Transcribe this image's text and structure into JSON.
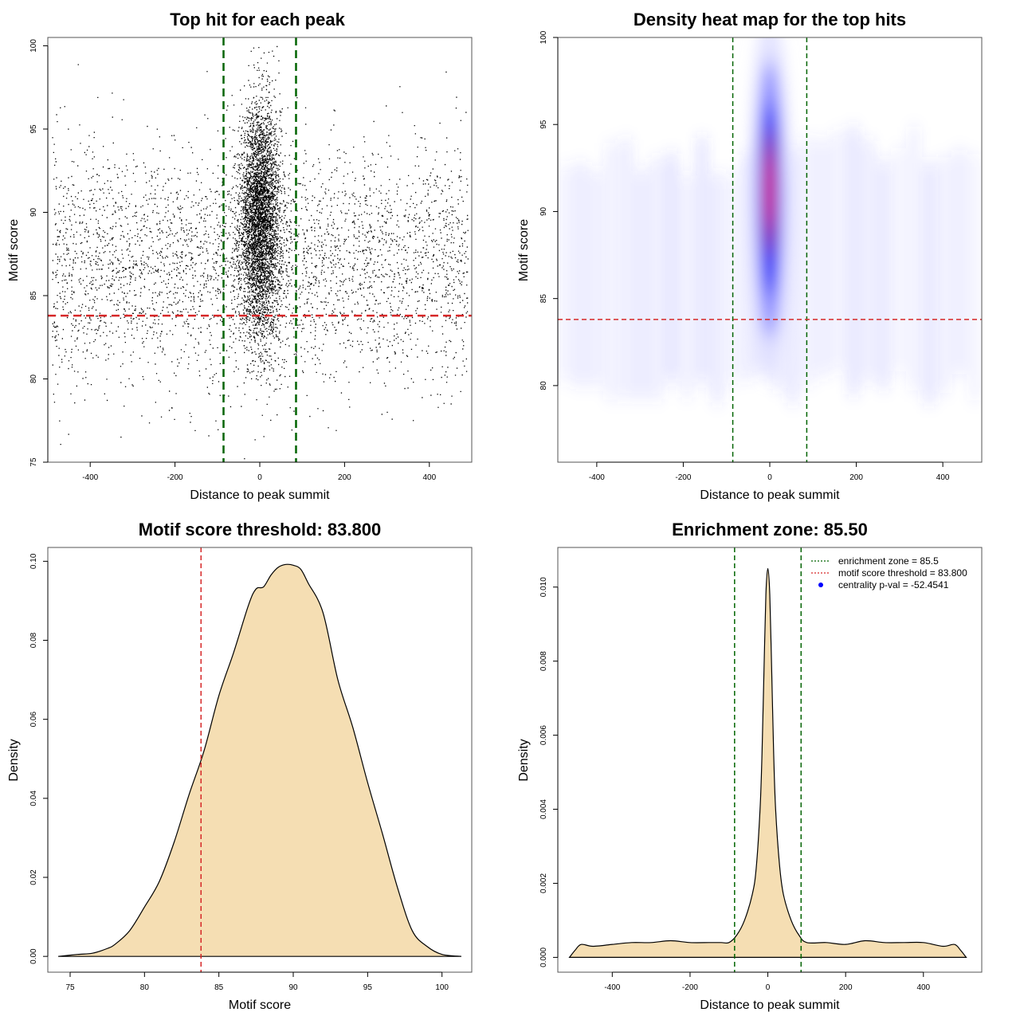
{
  "chart_data": [
    {
      "type": "scatter",
      "title": "Top hit for each peak",
      "xlabel": "Distance to peak summit",
      "ylabel": "Motif score",
      "xlim": [
        -500,
        500
      ],
      "ylim": [
        75,
        100.5
      ],
      "xticks": [
        -400,
        -200,
        0,
        200,
        400
      ],
      "yticks": [
        75,
        80,
        85,
        90,
        95,
        100
      ],
      "xtick_labels": [
        "-400",
        "-200",
        "0",
        "200",
        "400"
      ],
      "ytick_labels": [
        "75",
        "80",
        "85",
        "90",
        "95",
        "100"
      ],
      "enrichment_zone": [
        -85.5,
        85.5
      ],
      "motif_score_threshold": 83.8,
      "point_distribution": {
        "central_points": 4500,
        "central_x_sd": 24,
        "central_y_mean": 89.5,
        "central_y_sd": 3.4,
        "background_points": 3700,
        "background_y_mean": 87.0,
        "background_y_sd": 3.6
      },
      "colors": {
        "points": "#000000",
        "zone": "#006400",
        "threshold": "#d62728"
      }
    },
    {
      "type": "heatmap",
      "title": "Density heat map for the top hits",
      "xlabel": "Distance to peak summit",
      "ylabel": "Motif score",
      "xlim": [
        -490,
        490
      ],
      "ylim": [
        75.6,
        100
      ],
      "xticks": [
        -400,
        -200,
        0,
        200,
        400
      ],
      "yticks": [
        80,
        85,
        90,
        95,
        100
      ],
      "xtick_labels": [
        "-400",
        "-200",
        "0",
        "200",
        "400"
      ],
      "ytick_labels": [
        "80",
        "85",
        "90",
        "95",
        "100"
      ],
      "enrichment_zone": [
        -85.5,
        85.5
      ],
      "motif_score_threshold": 83.8,
      "peak": {
        "x": 0,
        "y": 91
      },
      "color_scale": [
        "#ffffff",
        "#0000ff",
        "#ff0000"
      ]
    },
    {
      "type": "area",
      "title": "Motif score threshold: 83.800",
      "xlabel": "Motif score",
      "ylabel": "Density",
      "xlim": [
        73.5,
        102
      ],
      "ylim": [
        -0.004,
        0.1035
      ],
      "xticks": [
        75,
        80,
        85,
        90,
        95,
        100
      ],
      "yticks": [
        0.0,
        0.02,
        0.04,
        0.06,
        0.08,
        0.1
      ],
      "xtick_labels": [
        "75",
        "80",
        "85",
        "90",
        "95",
        "100"
      ],
      "ytick_labels": [
        "0.00",
        "0.02",
        "0.04",
        "0.06",
        "0.08",
        "0.10"
      ],
      "threshold": 83.8,
      "x": [
        74.2,
        75.5,
        76.5,
        77.5,
        78,
        79,
        80,
        81,
        82,
        83,
        84,
        85,
        86,
        87,
        87.5,
        88,
        88.5,
        89,
        89.5,
        90,
        90.5,
        91,
        92,
        93,
        94,
        95,
        96,
        97,
        98,
        99,
        100,
        101.3
      ],
      "values": [
        0.0,
        0.0005,
        0.0008,
        0.002,
        0.003,
        0.0065,
        0.0125,
        0.019,
        0.029,
        0.041,
        0.052,
        0.066,
        0.077,
        0.089,
        0.093,
        0.0935,
        0.0965,
        0.0985,
        0.0992,
        0.099,
        0.098,
        0.0945,
        0.087,
        0.07,
        0.058,
        0.044,
        0.031,
        0.0175,
        0.0065,
        0.0025,
        0.0005,
        0.0
      ],
      "fill": "#f5deb3"
    },
    {
      "type": "area",
      "title": "Enrichment zone: 85.50",
      "xlabel": "Distance to peak summit",
      "ylabel": "Density",
      "xlim": [
        -540,
        550
      ],
      "ylim": [
        -0.0004,
        0.01107
      ],
      "xticks": [
        -400,
        -200,
        0,
        200,
        400
      ],
      "yticks": [
        0.0,
        0.002,
        0.004,
        0.006,
        0.008,
        0.01
      ],
      "xtick_labels": [
        "-400",
        "-200",
        "0",
        "200",
        "400"
      ],
      "ytick_labels": [
        "0.000",
        "0.002",
        "0.004",
        "0.006",
        "0.008",
        "0.010"
      ],
      "enrichment_zone": [
        -85.5,
        85.5
      ],
      "x": [
        -510,
        -495,
        -480,
        -450,
        -400,
        -350,
        -300,
        -250,
        -200,
        -150,
        -120,
        -100,
        -80,
        -60,
        -40,
        -30,
        -20,
        -15,
        -10,
        -5,
        0,
        5,
        10,
        15,
        20,
        30,
        40,
        60,
        80,
        100,
        150,
        200,
        250,
        300,
        350,
        400,
        450,
        480,
        495,
        510
      ],
      "values": [
        0.0,
        0.0002,
        0.00035,
        0.0003,
        0.00035,
        0.0004,
        0.0004,
        0.00045,
        0.0004,
        0.0004,
        0.0004,
        0.0004,
        0.0006,
        0.001,
        0.0017,
        0.0024,
        0.004,
        0.0055,
        0.0077,
        0.0098,
        0.0105,
        0.0098,
        0.0077,
        0.0055,
        0.004,
        0.0025,
        0.0017,
        0.001,
        0.0006,
        0.0004,
        0.0004,
        0.00035,
        0.00045,
        0.0004,
        0.0004,
        0.0004,
        0.0003,
        0.00035,
        0.0002,
        0.0
      ],
      "fill": "#f5deb3",
      "legend": {
        "placement": "top-right",
        "entries": [
          {
            "label": "enrichment zone = 85.5",
            "color": "#006400",
            "marker": "dotted-line"
          },
          {
            "label": "motif score threshold = 83.800",
            "color": "#d62728",
            "marker": "dotted-line"
          },
          {
            "label": "centrality p-val = -52.4541",
            "color": "#0000ff",
            "marker": "point"
          }
        ]
      }
    }
  ]
}
